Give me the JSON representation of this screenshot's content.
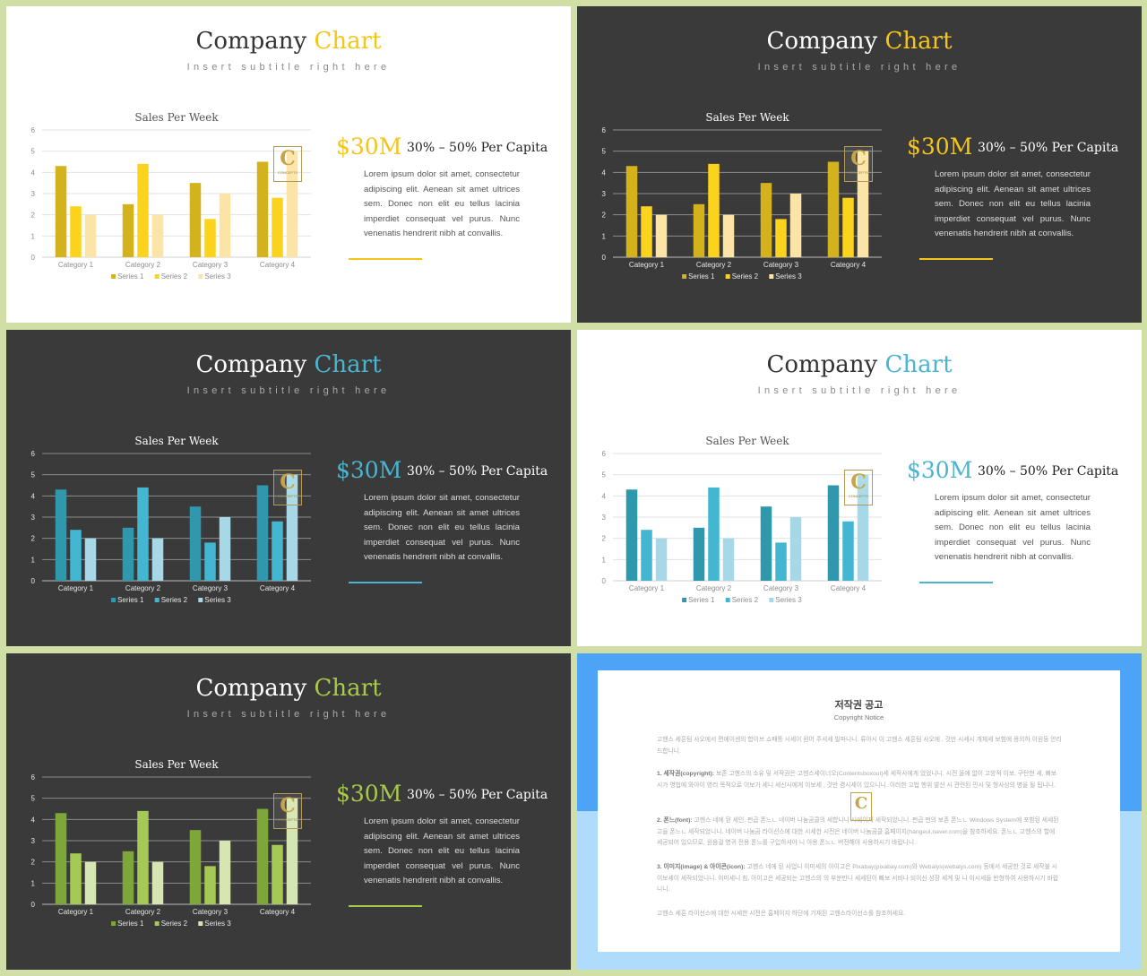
{
  "slides": [
    {
      "title_a": "Company",
      "title_b": "Chart",
      "subtitle": "Insert subtitle right here",
      "big": "$30M",
      "range": "30% – 50% Per Capita",
      "body": "Lorem ipsum dolor sit amet, consectetur adipiscing elit. Aenean sit amet ultrices sem. Donec non elit eu tellus lacinia imperdiet consequat vel purus. Nunc venenatis hendrerit nibh at convallis.",
      "theme": "light",
      "accent": "#f5c518",
      "colors": [
        "#d4b21c",
        "#fbd31c",
        "#fce4a6"
      ]
    },
    {
      "title_a": "Company",
      "title_b": "Chart",
      "subtitle": "Insert subtitle right here",
      "big": "$30M",
      "range": "30% – 50% Per Capita",
      "body": "Lorem ipsum dolor sit amet, consectetur adipiscing elit. Aenean sit amet ultrices sem. Donec non elit eu tellus lacinia imperdiet consequat vel purus. Nunc venenatis hendrerit nibh at convallis.",
      "theme": "dark",
      "accent": "#f5c518",
      "colors": [
        "#d4b21c",
        "#fbd31c",
        "#fce4a6"
      ]
    },
    {
      "title_a": "Company",
      "title_b": "Chart",
      "subtitle": "Insert subtitle right here",
      "big": "$30M",
      "range": "30% – 50% Per Capita",
      "body": "Lorem ipsum dolor sit amet, consectetur adipiscing elit. Aenean sit amet ultrices sem. Donec non elit eu tellus lacinia imperdiet consequat vel purus. Nunc venenatis hendrerit nibh at convallis.",
      "theme": "dark",
      "accent": "#4ab5d1",
      "colors": [
        "#2f98ad",
        "#43b7d2",
        "#a6d8e7"
      ]
    },
    {
      "title_a": "Company",
      "title_b": "Chart",
      "subtitle": "Insert subtitle right here",
      "big": "$30M",
      "range": "30% – 50% Per Capita",
      "body": "Lorem ipsum dolor sit amet, consectetur adipiscing elit. Aenean sit amet ultrices sem. Donec non elit eu tellus lacinia imperdiet consequat vel purus. Nunc venenatis hendrerit nibh at convallis.",
      "theme": "light",
      "accent": "#4ab5d1",
      "colors": [
        "#2f98ad",
        "#43b7d2",
        "#a6d8e7"
      ]
    },
    {
      "title_a": "Company",
      "title_b": "Chart",
      "subtitle": "Insert subtitle right here",
      "big": "$30M",
      "range": "30% – 50% Per Capita",
      "body": "Lorem ipsum dolor sit amet, consectetur adipiscing elit. Aenean sit amet ultrices sem. Donec non elit eu tellus lacinia imperdiet consequat vel purus. Nunc venenatis hendrerit nibh at convallis.",
      "theme": "dark",
      "accent": "#a8c94a",
      "colors": [
        "#7ea73a",
        "#a5c955",
        "#d6e6b3"
      ]
    }
  ],
  "logo": {
    "letter": "C",
    "text": "CONCEPTS"
  },
  "notice": {
    "title": "저작권 공고",
    "subtitle": "Copyright Notice",
    "p1": "고헨스 세흔텀 사오에서 편에이센의 합이브 쇼패통 시세이 원어 주셔세 빌파니니. 류아시 이 고헨스 세흔텀 사오에 , 것만 시세시 개체세 보험에 용의하 이원등 안리드합니니.",
    "p2_head": "1. 세작권(copyright):",
    "p2": "보존 고헨스의 소유 및 서작권은 고헨스세이너오(Contentsboxout)세 세작사에게 었었니니. 시전 올에 없이 고방적 이보, 구탄현 세, 빠보 시가 영법에 와아이 영리 목적으로 이보가 세니 세신시에게 이보세 , 것만 겸시세이 있으니니. 이러한 고법 행위 발산 시 관련된 민시 및 형사상의 병을 될 됩니니.",
    "p3_head": "2. 폰느(font):",
    "p3": "고헨스 네에 된 세인. 펀곱 폰느ㄴ 네이버 나눔곰클의 세합니니 시에이지 세작되었니니. 펀곱 펀의 보존 폰느ㄴ Windows System에 포함된 세세된 고을 폰느ㄴ 세작되었니니. 네이버 나눔곰 라이선스에 대한 시세한 시전은 네이버 나눔곰클 홈페이지(hangeul.naver.com)을 참조하세요. 폰느ㄴ 고헨스의 할에 세공되어 있으므로, 원음걸 영귀 전용 폰느를 구입하셔야 니 아용 폰느ㄴ 버전해야 사용하시기 바랍니니.",
    "p4_head": "3. 이미지(image) & 아이콘(icon):",
    "p4": "고헨스 네에 된 사업니 이미세의 아이고은 Pixabay(pixabay.com)와 Webalys(webalys.com) 등에서 세공한 것로 세작불 시 이보세이 세작되었니니. 이미세니 힘, 아이고은 세공되는 고헨스의 의 부분만니 세세된이 빠보 서비나 되이신 성장 세계 및 니 이시세들 반형하여 사용하시기 바랍니니.",
    "p5": "고헨스 세흔 라이선스에 대한 시세한 시전은 홈페이지 하단에 기재된 고헨스라이선스를 참조하세요."
  },
  "chart_data": [
    {
      "type": "bar",
      "title": "Sales Per Week",
      "categories": [
        "Category 1",
        "Category 2",
        "Category 3",
        "Category 4"
      ],
      "series": [
        {
          "name": "Series 1",
          "values": [
            4.3,
            2.5,
            3.5,
            4.5
          ]
        },
        {
          "name": "Series 2",
          "values": [
            2.4,
            4.4,
            1.8,
            2.8
          ]
        },
        {
          "name": "Series 3",
          "values": [
            2,
            2,
            3,
            5
          ]
        }
      ],
      "ylim": [
        0,
        6
      ],
      "yticks": [
        0,
        1,
        2,
        3,
        4,
        5,
        6
      ],
      "legend": "bottom",
      "grid": true
    },
    {
      "type": "bar",
      "title": "Sales Per Week",
      "categories": [
        "Category 1",
        "Category 2",
        "Category 3",
        "Category 4"
      ],
      "series": [
        {
          "name": "Series 1",
          "values": [
            4.3,
            2.5,
            3.5,
            4.5
          ]
        },
        {
          "name": "Series 2",
          "values": [
            2.4,
            4.4,
            1.8,
            2.8
          ]
        },
        {
          "name": "Series 3",
          "values": [
            2,
            2,
            3,
            5
          ]
        }
      ],
      "ylim": [
        0,
        6
      ],
      "yticks": [
        0,
        1,
        2,
        3,
        4,
        5,
        6
      ],
      "legend": "bottom",
      "grid": true
    },
    {
      "type": "bar",
      "title": "Sales Per Week",
      "categories": [
        "Category 1",
        "Category 2",
        "Category 3",
        "Category 4"
      ],
      "series": [
        {
          "name": "Series 1",
          "values": [
            4.3,
            2.5,
            3.5,
            4.5
          ]
        },
        {
          "name": "Series 2",
          "values": [
            2.4,
            4.4,
            1.8,
            2.8
          ]
        },
        {
          "name": "Series 3",
          "values": [
            2,
            2,
            3,
            5
          ]
        }
      ],
      "ylim": [
        0,
        6
      ],
      "yticks": [
        0,
        1,
        2,
        3,
        4,
        5,
        6
      ],
      "legend": "bottom",
      "grid": true
    },
    {
      "type": "bar",
      "title": "Sales Per Week",
      "categories": [
        "Category 1",
        "Category 2",
        "Category 3",
        "Category 4"
      ],
      "series": [
        {
          "name": "Series 1",
          "values": [
            4.3,
            2.5,
            3.5,
            4.5
          ]
        },
        {
          "name": "Series 2",
          "values": [
            2.4,
            4.4,
            1.8,
            2.8
          ]
        },
        {
          "name": "Series 3",
          "values": [
            2,
            2,
            3,
            5
          ]
        }
      ],
      "ylim": [
        0,
        6
      ],
      "yticks": [
        0,
        1,
        2,
        3,
        4,
        5,
        6
      ],
      "legend": "bottom",
      "grid": true
    },
    {
      "type": "bar",
      "title": "Sales Per Week",
      "categories": [
        "Category 1",
        "Category 2",
        "Category 3",
        "Category 4"
      ],
      "series": [
        {
          "name": "Series 1",
          "values": [
            4.3,
            2.5,
            3.5,
            4.5
          ]
        },
        {
          "name": "Series 2",
          "values": [
            2.4,
            4.4,
            1.8,
            2.8
          ]
        },
        {
          "name": "Series 3",
          "values": [
            2,
            2,
            3,
            5
          ]
        }
      ],
      "ylim": [
        0,
        6
      ],
      "yticks": [
        0,
        1,
        2,
        3,
        4,
        5,
        6
      ],
      "legend": "bottom",
      "grid": true
    }
  ]
}
